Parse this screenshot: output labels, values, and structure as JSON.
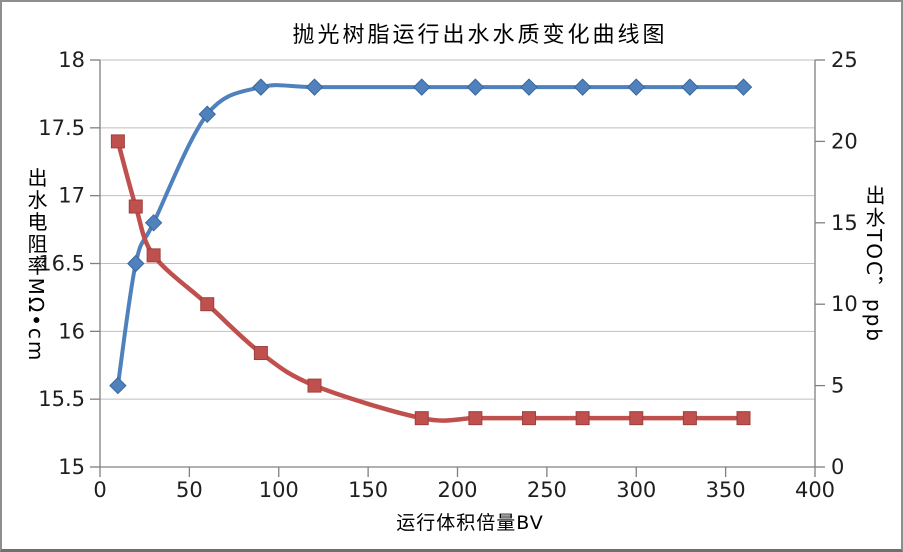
{
  "chart_data": {
    "type": "line",
    "title": "抛光树脂运行出水水质变化曲线图",
    "xlabel": "运行体积倍量BV",
    "ylabel_left": "出水电阻率MΩ•cm",
    "ylabel_right": "出水TOC，ppb",
    "grid": true,
    "legend": "none",
    "smooth": true,
    "x": [
      10,
      20,
      30,
      60,
      90,
      120,
      180,
      210,
      240,
      270,
      300,
      330,
      360
    ],
    "series": [
      {
        "name": "出水电阻率MΩ•cm",
        "axis": "left",
        "marker": "diamond",
        "color": "#4F81BD",
        "marker_border": "#3A679C",
        "line_width": 4,
        "values": [
          15.6,
          16.5,
          16.8,
          17.6,
          17.8,
          17.8,
          17.8,
          17.8,
          17.8,
          17.8,
          17.8,
          17.8,
          17.8
        ]
      },
      {
        "name": "出水TOC，ppb",
        "axis": "right",
        "marker": "square",
        "color": "#C0504D",
        "marker_border": "#9C413E",
        "line_width": 4.5,
        "values": [
          20,
          16,
          13,
          10,
          7,
          5,
          3,
          3,
          3,
          3,
          3,
          3,
          3
        ]
      }
    ],
    "x_axis": {
      "min": 0,
      "max": 400,
      "ticks": [
        0,
        50,
        100,
        150,
        200,
        250,
        300,
        350,
        400
      ]
    },
    "y_axis_left": {
      "min": 15,
      "max": 18,
      "ticks": [
        15,
        15.5,
        16,
        16.5,
        17,
        17.5,
        18
      ]
    },
    "y_axis_right": {
      "min": 0,
      "max": 25,
      "ticks": [
        0,
        5,
        10,
        15,
        20,
        25
      ]
    },
    "colors": {
      "grid": "#BFBFBF",
      "axis": "#808080",
      "tick": "#808080",
      "text": "#1f1f1f",
      "background": "#FFFFFF"
    }
  }
}
